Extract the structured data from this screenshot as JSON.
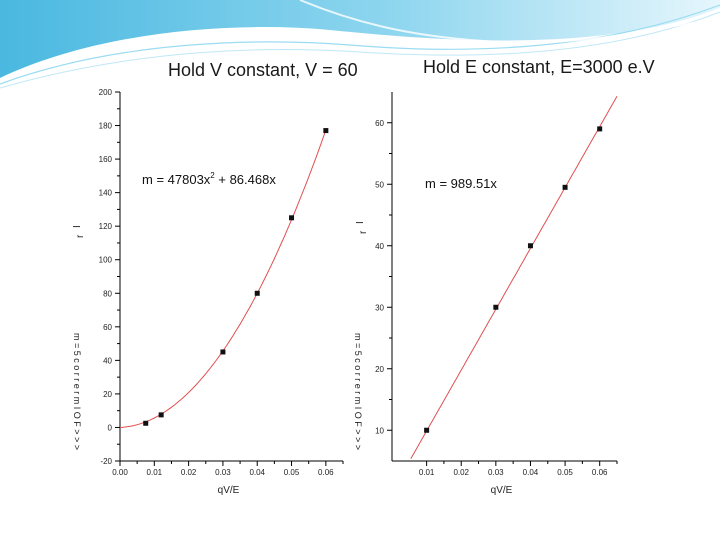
{
  "slide": {
    "title_left": "Hold V constant, V = 60",
    "title_right": "Hold E constant, E=3000 e.V",
    "colors": {
      "banner_top": "#5fc3e6",
      "banner_bottom": "#d9f1fa",
      "fit_line": "#e05050",
      "marker": "#111111"
    }
  },
  "chart_data": [
    {
      "type": "scatter",
      "title": "Hold V constant, V = 60",
      "xlabel": "qV/E",
      "ylabel": "I",
      "ylabel_sub": "r",
      "xlim": [
        0.0,
        0.065
      ],
      "ylim": [
        -20,
        200
      ],
      "xticks": [
        0.0,
        0.01,
        0.02,
        0.03,
        0.04,
        0.05,
        0.06
      ],
      "xtick_labels": [
        "0.00",
        "0.01",
        "0.02",
        "0.03",
        "0.04",
        "0.05",
        "0.06"
      ],
      "yticks": [
        -20,
        0,
        20,
        40,
        60,
        80,
        100,
        120,
        140,
        160,
        180,
        200
      ],
      "ytick_labels": [
        "-20",
        "0",
        "20",
        "40",
        "60",
        "80",
        "100",
        "120",
        "140",
        "160",
        "180",
        "200"
      ],
      "points": {
        "x": [
          0.0075,
          0.012,
          0.03,
          0.04,
          0.05,
          0.06
        ],
        "y": [
          2.5,
          7.5,
          45,
          80,
          125,
          177
        ]
      },
      "fit": {
        "type": "quadratic",
        "a": 47803,
        "b": 86.468,
        "x_range": [
          0.0,
          0.06
        ]
      },
      "annotation": {
        "text_prefix": "m = 47803x",
        "text_exp": "2",
        "text_suffix": " + 86.468x"
      },
      "side_text": "m = 5 c o r r e r m I O F > > >",
      "grid": false,
      "legend": "none"
    },
    {
      "type": "scatter",
      "title": "Hold E constant, E=3000 e.V",
      "xlabel": "qV/E",
      "ylabel": "I",
      "ylabel_sub": "r",
      "xlim": [
        0.0,
        0.065
      ],
      "ylim": [
        5,
        65
      ],
      "xticks": [
        0.01,
        0.02,
        0.03,
        0.04,
        0.05,
        0.06
      ],
      "xtick_labels": [
        "0.01",
        "0.02",
        "0.03",
        "0.04",
        "0.05",
        "0.06"
      ],
      "yticks": [
        10,
        20,
        30,
        40,
        50,
        60
      ],
      "ytick_labels": [
        "10",
        "20",
        "30",
        "40",
        "50",
        "60"
      ],
      "points": {
        "x": [
          0.01,
          0.03,
          0.04,
          0.05,
          0.06
        ],
        "y": [
          10,
          30,
          40,
          49.5,
          59
        ]
      },
      "fit": {
        "type": "linear",
        "m": 989.51,
        "x_range": [
          0.0,
          0.065
        ]
      },
      "annotation": {
        "text": "m = 989.51x"
      },
      "side_text": "m = 5 c o r r e r m I O F > > >",
      "grid": false,
      "legend": "none"
    }
  ]
}
